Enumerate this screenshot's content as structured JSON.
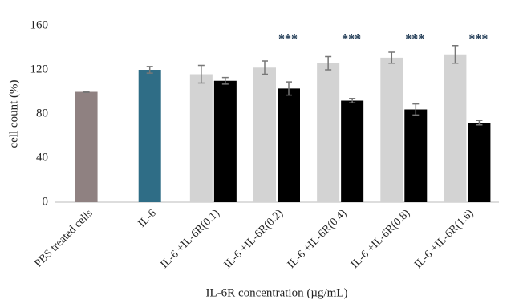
{
  "chart_data": {
    "type": "bar",
    "x_label": "IL-6R concentration (µg/mL)",
    "y_label": "cell count (%)",
    "categories": [
      "PBS treated cells",
      "IL-6",
      "IL-6 +IL-6R(0.1)",
      "IL-6 +IL-6R(0.2)",
      "IL-6 +IL-6R(0.4)",
      "IL-6 +IL-6R(0.8)",
      "IL-6 +IL-6R(1.6)"
    ],
    "series": [
      {
        "colors": [
          "#8f8181",
          "#2f6d86",
          "#d3d3d3",
          "#d3d3d3",
          "#d3d3d3",
          "#d3d3d3",
          "#d3d3d3"
        ],
        "values": [
          100,
          120,
          116,
          122,
          126,
          131,
          134
        ],
        "errors": [
          0.5,
          3,
          8,
          6,
          6,
          5,
          8
        ]
      },
      {
        "color": "#000000",
        "values": [
          null,
          null,
          110,
          103,
          92,
          84,
          72
        ],
        "errors": [
          null,
          null,
          3,
          6,
          2,
          5,
          2
        ]
      }
    ],
    "annotations": [
      null,
      null,
      null,
      "***",
      "***",
      "***",
      "***"
    ],
    "ylim": [
      0,
      160
    ],
    "yticks": [
      0,
      40,
      80,
      120,
      160
    ],
    "grid": false
  }
}
